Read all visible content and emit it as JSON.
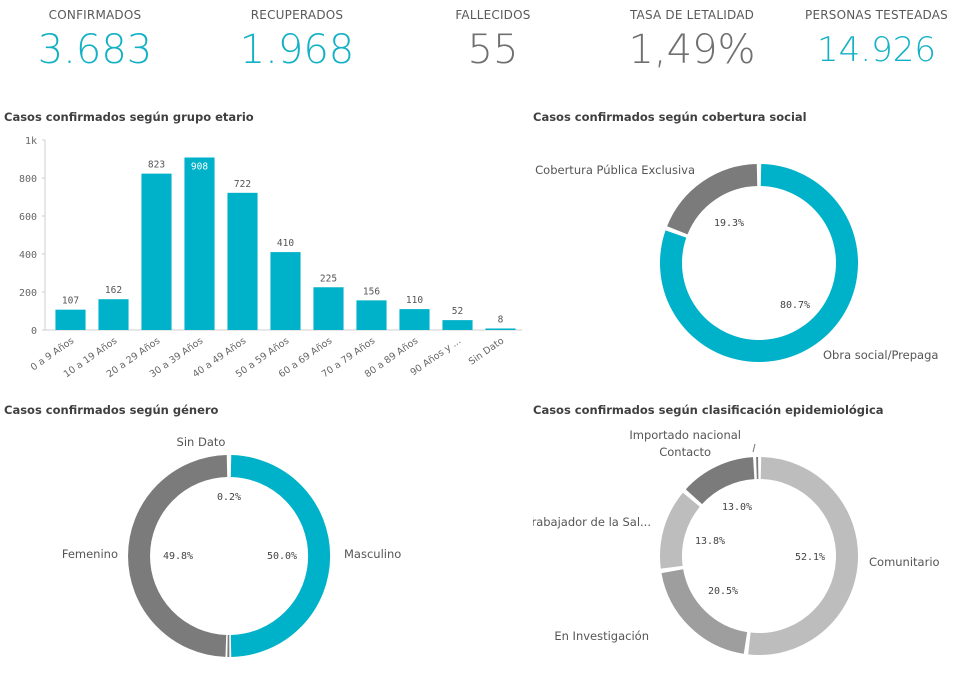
{
  "kpis": [
    {
      "label": "CONFIRMADOS",
      "value": "3.683",
      "color": "#13b1c6"
    },
    {
      "label": "RECUPERADOS",
      "value": "1.968",
      "color": "#13b1c6"
    },
    {
      "label": "FALLECIDOS",
      "value": "55",
      "color": "#707070"
    },
    {
      "label": "TASA DE LETALIDAD",
      "value": "1,49%",
      "color": "#707070"
    },
    {
      "label": "PERSONAS TESTEADAS",
      "value": "14.926",
      "color": "#13b1c6"
    }
  ],
  "colors": {
    "accent": "#00b2c9",
    "dark_gray": "#7b7b7b",
    "mid_gray": "#9e9e9e",
    "light_gray": "#bdbdbd",
    "gray2": "#8d8d8d"
  },
  "chart_data": [
    {
      "type": "bar",
      "title": "Casos confirmados según grupo etario",
      "categories": [
        "0 a 9 Años",
        "10 a 19 Años",
        "20 a 29 Años",
        "30 a 39 Años",
        "40 a 49 Años",
        "50 a 59 Años",
        "60 a 69 Años",
        "70 a 79 Años",
        "80 a 89 Años",
        "90 Años y ...",
        "Sin Dato"
      ],
      "values": [
        107,
        162,
        823,
        908,
        722,
        410,
        225,
        156,
        110,
        52,
        8
      ],
      "value_labels": [
        "107",
        "162",
        "823",
        "908",
        "722",
        "410",
        "225",
        "156",
        "110",
        "52",
        "8"
      ],
      "ylim": [
        0,
        1000
      ],
      "yticks": [
        0,
        200,
        400,
        600,
        800,
        1000
      ],
      "ytick_labels": [
        "0",
        "200",
        "400",
        "600",
        "800",
        "1k"
      ],
      "grid": false
    },
    {
      "type": "pie",
      "title": "Casos confirmados según cobertura social",
      "slices": [
        {
          "label": "Obra social/Prepaga",
          "value": 80.7,
          "pct_label": "80.7%"
        },
        {
          "label": "Cobertura Pública Exclusiva",
          "value": 19.3,
          "pct_label": "19.3%"
        }
      ]
    },
    {
      "type": "pie",
      "title": "Casos confirmados según género",
      "slices": [
        {
          "label": "Masculino",
          "value": 50.0,
          "pct_label": "50.0%"
        },
        {
          "label": "Sin Dato",
          "value": 0.2,
          "pct_label": "0.2%"
        },
        {
          "label": "Femenino",
          "value": 49.8,
          "pct_label": "49.8%"
        }
      ]
    },
    {
      "type": "pie",
      "title": "Casos confirmados según clasificación epidemiológica",
      "slices": [
        {
          "label": "Comunitario",
          "value": 52.1,
          "pct_label": "52.1%"
        },
        {
          "label": "En Investigación",
          "value": 20.5,
          "pct_label": "20.5%"
        },
        {
          "label": "Trabajador de la Sal...",
          "value": 13.8,
          "pct_label": "13.8%"
        },
        {
          "label": "Contacto",
          "value": 13.0,
          "pct_label": "13.0%"
        },
        {
          "label": "Importado nacional",
          "value": 0.6,
          "pct_label": ""
        }
      ]
    }
  ]
}
